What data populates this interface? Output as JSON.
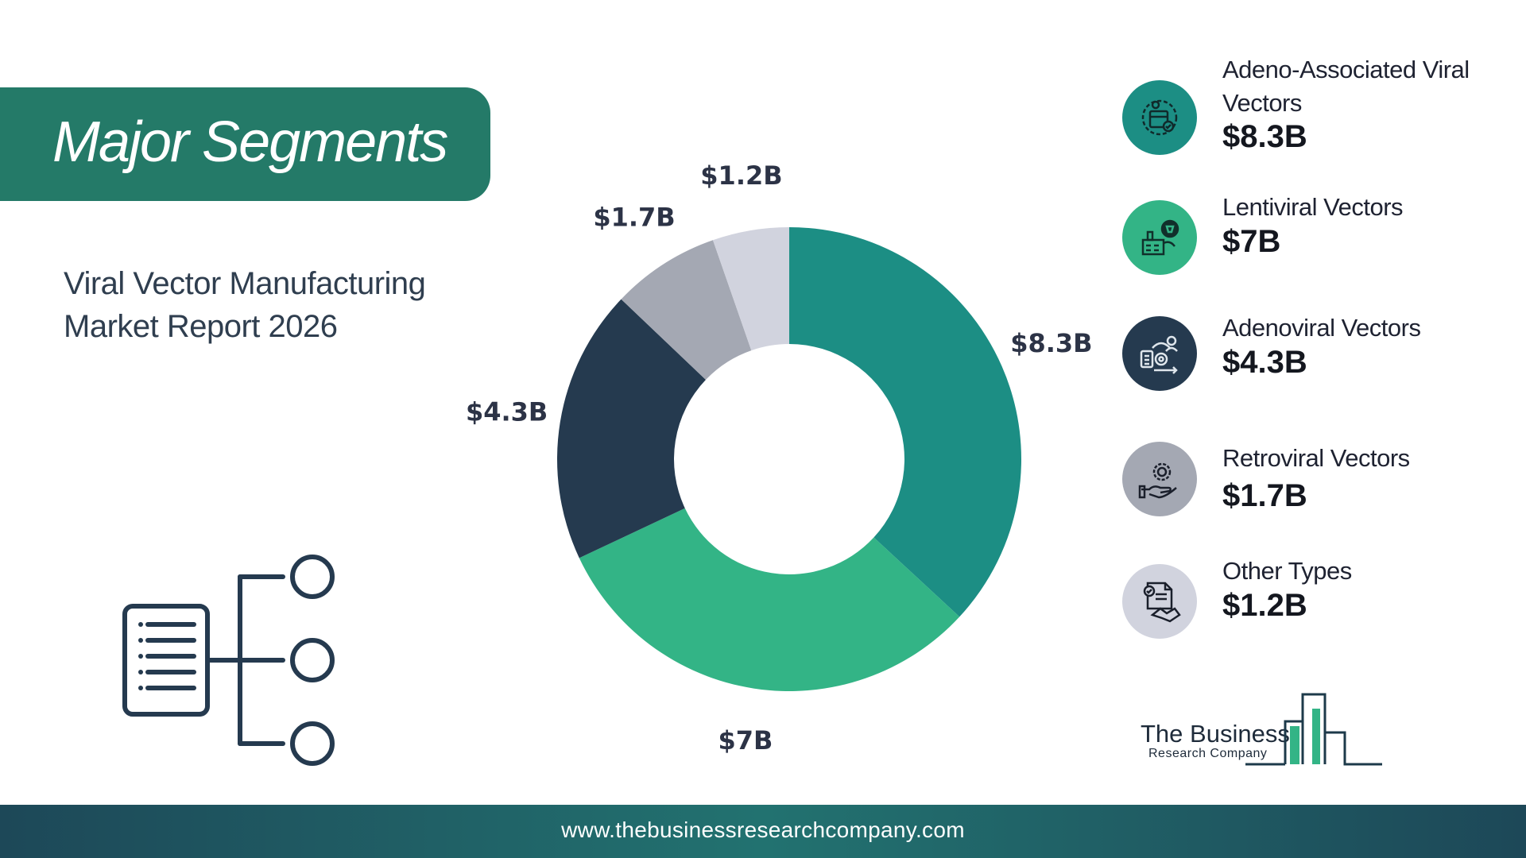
{
  "banner": {
    "title": "Major Segments"
  },
  "report": {
    "line1": "Viral Vector Manufacturing",
    "line2": "Market Report 2026"
  },
  "chart_data": {
    "type": "pie",
    "donut": true,
    "title": "",
    "categories": [
      "Adeno-Associated Viral Vectors",
      "Lentiviral Vectors",
      "Adenoviral Vectors",
      "Retroviral Vectors",
      "Other Types"
    ],
    "values": [
      8.3,
      7,
      4.3,
      1.7,
      1.2
    ],
    "labels": [
      "$8.3B",
      "$7B",
      "$4.3B",
      "$1.7B",
      "$1.2B"
    ],
    "colors": [
      "#1c8e84",
      "#33b486",
      "#253a4f",
      "#a4a8b3",
      "#d1d3de"
    ],
    "legend_position": "right"
  },
  "legend": [
    {
      "name": "Adeno-Associated Viral Vectors",
      "value": "$8.3B",
      "icon": "gene-box-gear-icon",
      "color": "#1c8e84"
    },
    {
      "name": "Lentiviral Vectors",
      "value": "$7B",
      "icon": "factory-icon",
      "color": "#33b486"
    },
    {
      "name": "Adenoviral Vectors",
      "value": "$4.3B",
      "icon": "process-flow-icon",
      "color": "#253a4f"
    },
    {
      "name": "Retroviral Vectors",
      "value": "$1.7B",
      "icon": "gear-hand-icon",
      "color": "#a4a8b3"
    },
    {
      "name": "Other Types",
      "value": "$1.2B",
      "icon": "document-handshake-icon",
      "color": "#d1d3de"
    }
  ],
  "logo": {
    "name": "The Business",
    "sub": "Research Company"
  },
  "footer": {
    "url": "www.thebusinessresearchcompany.com"
  }
}
